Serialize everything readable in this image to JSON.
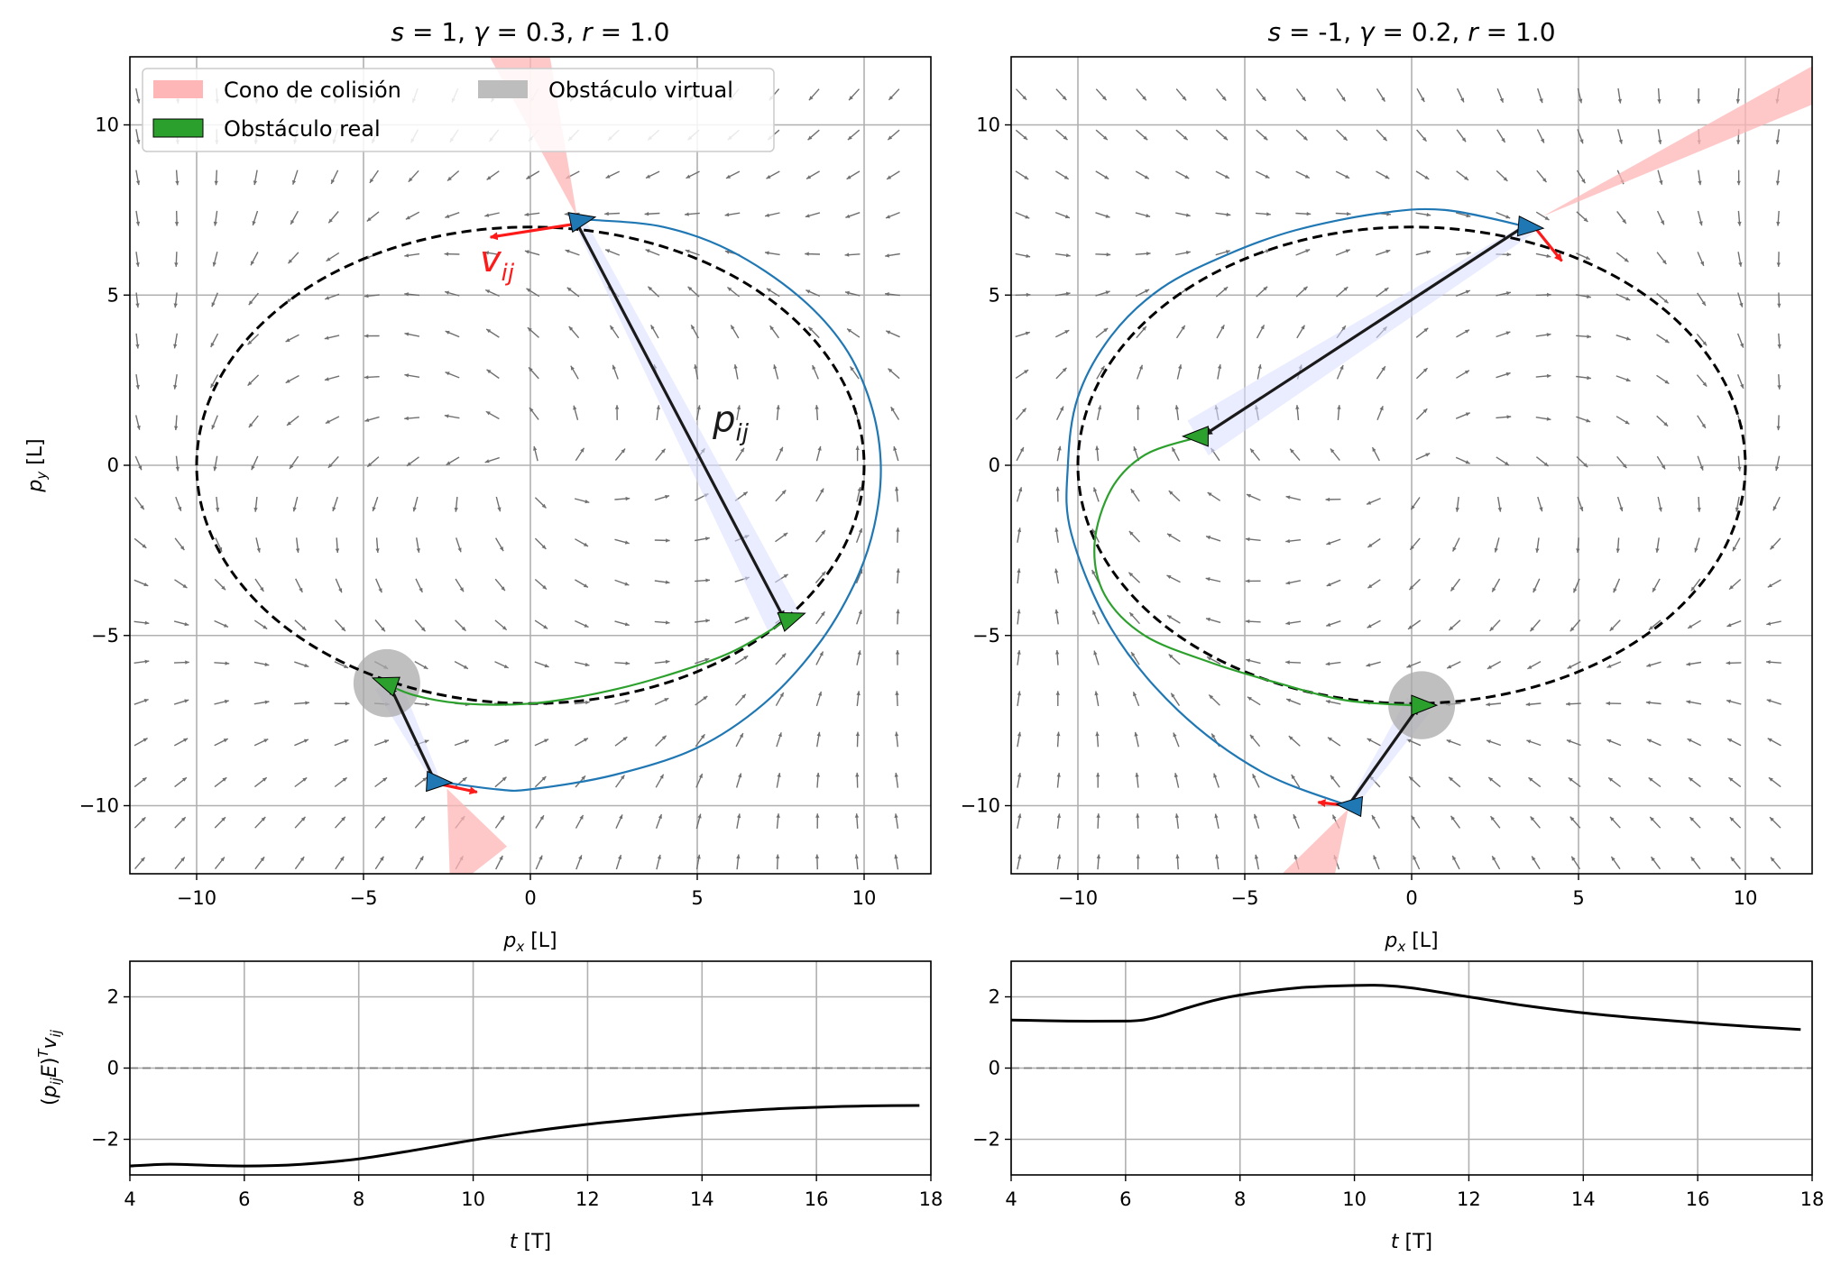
{
  "figure": {
    "width_label": "",
    "height_label": ""
  },
  "colors": {
    "trajectory_blue": "#1f77b4",
    "trajectory_green": "#2ca02c",
    "cone": "#ffb6b6",
    "shadow": "#d9dcff",
    "virtual": "#a9a9a9",
    "arrow_red": "#ff1a1a",
    "arrow_dark": "#1a1a1a",
    "quiver": "#707070",
    "grid": "#b0b0b0"
  },
  "chart_data": [
    {
      "id": "top-left",
      "type": "line",
      "title": "s = 1, γ = 0.3, r = 1.0",
      "title_parts": [
        "s",
        " = 1, ",
        "γ",
        " = 0.3, ",
        "r",
        " = 1.0"
      ],
      "xlabel": "p_x [L]",
      "ylabel": "p_y [L]",
      "xlim": [
        -12,
        12
      ],
      "ylim": [
        -12,
        12
      ],
      "xticks": [
        -10,
        -5,
        0,
        5,
        10
      ],
      "yticks": [
        -10,
        -5,
        0,
        5,
        10
      ],
      "xtick_labels": [
        "−10",
        "−5",
        "0",
        "5",
        "10"
      ],
      "ytick_labels": [
        "−10",
        "−5",
        "0",
        "5",
        "10"
      ],
      "guiding_ellipse": {
        "center": [
          0,
          0
        ],
        "a": 10,
        "b": 7,
        "style": "dashed"
      },
      "vector_field": {
        "s": 1,
        "a": 10,
        "b": 7,
        "grid_step": 1.2
      },
      "trajectory_blue": [
        [
          -2.7,
          -9.3
        ],
        [
          -1.0,
          -9.52
        ],
        [
          0.0,
          -9.52
        ],
        [
          2.5,
          -9.1
        ],
        [
          5.0,
          -8.3
        ],
        [
          7.0,
          -7.0
        ],
        [
          8.6,
          -5.3
        ],
        [
          9.7,
          -3.5
        ],
        [
          10.3,
          -1.8
        ],
        [
          10.5,
          0
        ],
        [
          10.2,
          1.8
        ],
        [
          9.4,
          3.5
        ],
        [
          8.0,
          5.0
        ],
        [
          6.0,
          6.3
        ],
        [
          4.0,
          7.0
        ],
        [
          2.0,
          7.2
        ],
        [
          1.4,
          7.2
        ]
      ],
      "trajectory_green": [
        [
          -4.6,
          -6.3
        ],
        [
          -3.5,
          -6.75
        ],
        [
          -2.0,
          -7.0
        ],
        [
          0.0,
          -7.0
        ],
        [
          2.0,
          -6.7
        ],
        [
          4.0,
          -6.2
        ],
        [
          6.0,
          -5.5
        ],
        [
          7.6,
          -4.6
        ]
      ],
      "agents": [
        {
          "kind": "blue",
          "position": [
            1.5,
            7.2
          ],
          "heading_deg": 12
        },
        {
          "kind": "blue",
          "position": [
            -2.8,
            -9.3
          ],
          "heading_deg": -3
        },
        {
          "kind": "green",
          "position": [
            7.8,
            -4.5
          ],
          "heading_deg": 20
        },
        {
          "kind": "green",
          "position": [
            -4.3,
            -6.4
          ],
          "heading_deg": 160
        }
      ],
      "virtual_obstacles": [
        {
          "center": [
            -4.3,
            -6.4
          ],
          "radius": 1.0
        }
      ],
      "cones": [
        {
          "apex": [
            1.4,
            7.3
          ],
          "tips": [
            [
              -1.5,
              12.5
            ],
            [
              0.5,
              12.5
            ]
          ]
        },
        {
          "apex": [
            -2.5,
            -9.5
          ],
          "tips": [
            [
              -2.4,
              -12.5
            ],
            [
              -0.7,
              -11.2
            ]
          ]
        }
      ],
      "shadows": [
        {
          "points": [
            [
              1.4,
              7.3
            ],
            [
              7.6,
              -4.6
            ]
          ],
          "width": 1.1
        },
        {
          "points": [
            [
              -2.8,
              -9.3
            ],
            [
              -4.3,
              -6.4
            ]
          ],
          "width": 0.8
        }
      ],
      "arrows": [
        {
          "color": "arrow_dark",
          "from": [
            1.4,
            7.1
          ],
          "to": [
            7.6,
            -4.5
          ]
        },
        {
          "color": "arrow_red",
          "from": [
            1.4,
            7.1
          ],
          "to": [
            -1.2,
            6.7
          ]
        },
        {
          "color": "arrow_dark",
          "from": [
            -2.9,
            -9.2
          ],
          "to": [
            -4.2,
            -6.5
          ]
        },
        {
          "color": "arrow_red",
          "from": [
            -2.8,
            -9.35
          ],
          "to": [
            -1.6,
            -9.6
          ]
        }
      ],
      "annotations": [
        {
          "text": "v",
          "sub": "ij",
          "at": [
            -1.0,
            5.7
          ],
          "color": "arrow_red"
        },
        {
          "text": "p",
          "sub": "ij",
          "at": [
            6.0,
            1.0
          ],
          "color": "arrow_dark"
        }
      ],
      "legend": {
        "position": "top-left",
        "entries": [
          {
            "label": "Cono de colisión",
            "swatch": "cone"
          },
          {
            "label": "Obstáculo virtual",
            "swatch": "virtual"
          },
          {
            "label": "Obstáculo real",
            "swatch": "trajectory_green"
          }
        ]
      }
    },
    {
      "id": "top-right",
      "type": "line",
      "title": "s = -1, γ = 0.2, r = 1.0",
      "title_parts": [
        "s",
        " = -1, ",
        "γ",
        " = 0.2, ",
        "r",
        " = 1.0"
      ],
      "xlabel": "p_x [L]",
      "ylabel": "",
      "xlim": [
        -12,
        12
      ],
      "ylim": [
        -12,
        12
      ],
      "xticks": [
        -10,
        -5,
        0,
        5,
        10
      ],
      "yticks": [
        -10,
        -5,
        0,
        5,
        10
      ],
      "xtick_labels": [
        "−10",
        "−5",
        "0",
        "5",
        "10"
      ],
      "ytick_labels": [
        "−10",
        "−5",
        "0",
        "5",
        "10"
      ],
      "guiding_ellipse": {
        "center": [
          0,
          0
        ],
        "a": 10,
        "b": 7,
        "style": "dashed"
      },
      "vector_field": {
        "s": -1,
        "a": 10,
        "b": 7,
        "grid_step": 1.2
      },
      "trajectory_blue": [
        [
          -1.9,
          -10.0
        ],
        [
          -4.5,
          -9.0
        ],
        [
          -7.0,
          -7.2
        ],
        [
          -9.0,
          -4.8
        ],
        [
          -10.2,
          -2.0
        ],
        [
          -10.3,
          0
        ],
        [
          -10.0,
          2.0
        ],
        [
          -9.0,
          3.8
        ],
        [
          -7.5,
          5.2
        ],
        [
          -5.5,
          6.2
        ],
        [
          -3.5,
          6.9
        ],
        [
          -1.0,
          7.4
        ],
        [
          1.0,
          7.5
        ],
        [
          3.5,
          7.0
        ]
      ],
      "trajectory_green": [
        [
          -6.5,
          0.8
        ],
        [
          -8.0,
          0.3
        ],
        [
          -9.0,
          -0.7
        ],
        [
          -9.5,
          -2.3
        ],
        [
          -9.2,
          -3.8
        ],
        [
          -8.0,
          -5.0
        ],
        [
          -6.0,
          -5.8
        ],
        [
          -4.0,
          -6.4
        ],
        [
          -2.0,
          -6.9
        ],
        [
          0.0,
          -7.05
        ],
        [
          0.5,
          -7.05
        ]
      ],
      "agents": [
        {
          "kind": "blue",
          "position": [
            3.5,
            7.0
          ],
          "heading_deg": -5
        },
        {
          "kind": "blue",
          "position": [
            -1.8,
            -10.0
          ],
          "heading_deg": 175
        },
        {
          "kind": "green",
          "position": [
            -6.4,
            0.85
          ],
          "heading_deg": 180
        },
        {
          "kind": "green",
          "position": [
            0.3,
            -7.05
          ],
          "heading_deg": 0
        }
      ],
      "virtual_obstacles": [
        {
          "center": [
            0.3,
            -7.05
          ],
          "radius": 1.0
        }
      ],
      "cones": [
        {
          "apex": [
            3.9,
            7.3
          ],
          "tips": [
            [
              12.5,
              12.0
            ],
            [
              12.5,
              10.8
            ]
          ]
        },
        {
          "apex": [
            -1.9,
            -10.1
          ],
          "tips": [
            [
              -4.4,
              -12.5
            ],
            [
              -2.4,
              -12.5
            ]
          ]
        }
      ],
      "shadows": [
        {
          "points": [
            [
              3.6,
              7.0
            ],
            [
              -6.4,
              0.8
            ]
          ],
          "width": 1.2
        },
        {
          "points": [
            [
              -1.8,
              -10.0
            ],
            [
              0.2,
              -7.05
            ]
          ],
          "width": 0.8
        }
      ],
      "arrows": [
        {
          "color": "arrow_dark",
          "from": [
            3.5,
            7.1
          ],
          "to": [
            -6.2,
            0.9
          ]
        },
        {
          "color": "arrow_red",
          "from": [
            3.6,
            7.1
          ],
          "to": [
            4.5,
            6.0
          ]
        },
        {
          "color": "arrow_dark",
          "from": [
            -1.9,
            -10.0
          ],
          "to": [
            0.2,
            -7.1
          ]
        },
        {
          "color": "arrow_red",
          "from": [
            -1.9,
            -10.0
          ],
          "to": [
            -2.8,
            -9.9
          ]
        }
      ],
      "annotations": [],
      "legend": null
    },
    {
      "id": "bottom-left",
      "type": "line",
      "title": "",
      "xlabel": "t [T]",
      "ylabel": "(p_ij E)^T v_ij",
      "xlim": [
        4,
        18
      ],
      "ylim": [
        -3,
        3
      ],
      "xticks": [
        4,
        6,
        8,
        10,
        12,
        14,
        16,
        18
      ],
      "yticks": [
        -2,
        0,
        2
      ],
      "xtick_labels": [
        "4",
        "6",
        "8",
        "10",
        "12",
        "14",
        "16",
        "18"
      ],
      "ytick_labels": [
        "−2",
        "0",
        "2"
      ],
      "zero_line": "dashed",
      "x": [
        4.0,
        4.6,
        5.0,
        6.0,
        7.0,
        8.0,
        9.0,
        10.0,
        11.0,
        12.0,
        13.0,
        14.0,
        15.0,
        16.0,
        17.0,
        17.8
      ],
      "y": [
        -2.75,
        -2.7,
        -2.71,
        -2.75,
        -2.7,
        -2.55,
        -2.3,
        -2.02,
        -1.78,
        -1.58,
        -1.42,
        -1.28,
        -1.17,
        -1.1,
        -1.06,
        -1.05
      ]
    },
    {
      "id": "bottom-right",
      "type": "line",
      "title": "",
      "xlabel": "t [T]",
      "ylabel": "",
      "xlim": [
        4,
        18
      ],
      "ylim": [
        -3,
        3
      ],
      "xticks": [
        4,
        6,
        8,
        10,
        12,
        14,
        16,
        18
      ],
      "yticks": [
        -2,
        0,
        2
      ],
      "xtick_labels": [
        "4",
        "6",
        "8",
        "10",
        "12",
        "14",
        "16",
        "18"
      ],
      "ytick_labels": [
        "−2",
        "0",
        "2"
      ],
      "zero_line": "dashed",
      "x": [
        4.0,
        5.0,
        6.0,
        6.3,
        6.6,
        7.0,
        7.5,
        8.0,
        9.0,
        10.0,
        10.5,
        11.0,
        12.0,
        13.0,
        14.0,
        15.0,
        16.0,
        17.0,
        17.8
      ],
      "y": [
        1.35,
        1.32,
        1.32,
        1.35,
        1.45,
        1.65,
        1.88,
        2.05,
        2.25,
        2.32,
        2.32,
        2.25,
        2.0,
        1.75,
        1.55,
        1.4,
        1.27,
        1.16,
        1.08
      ]
    }
  ]
}
